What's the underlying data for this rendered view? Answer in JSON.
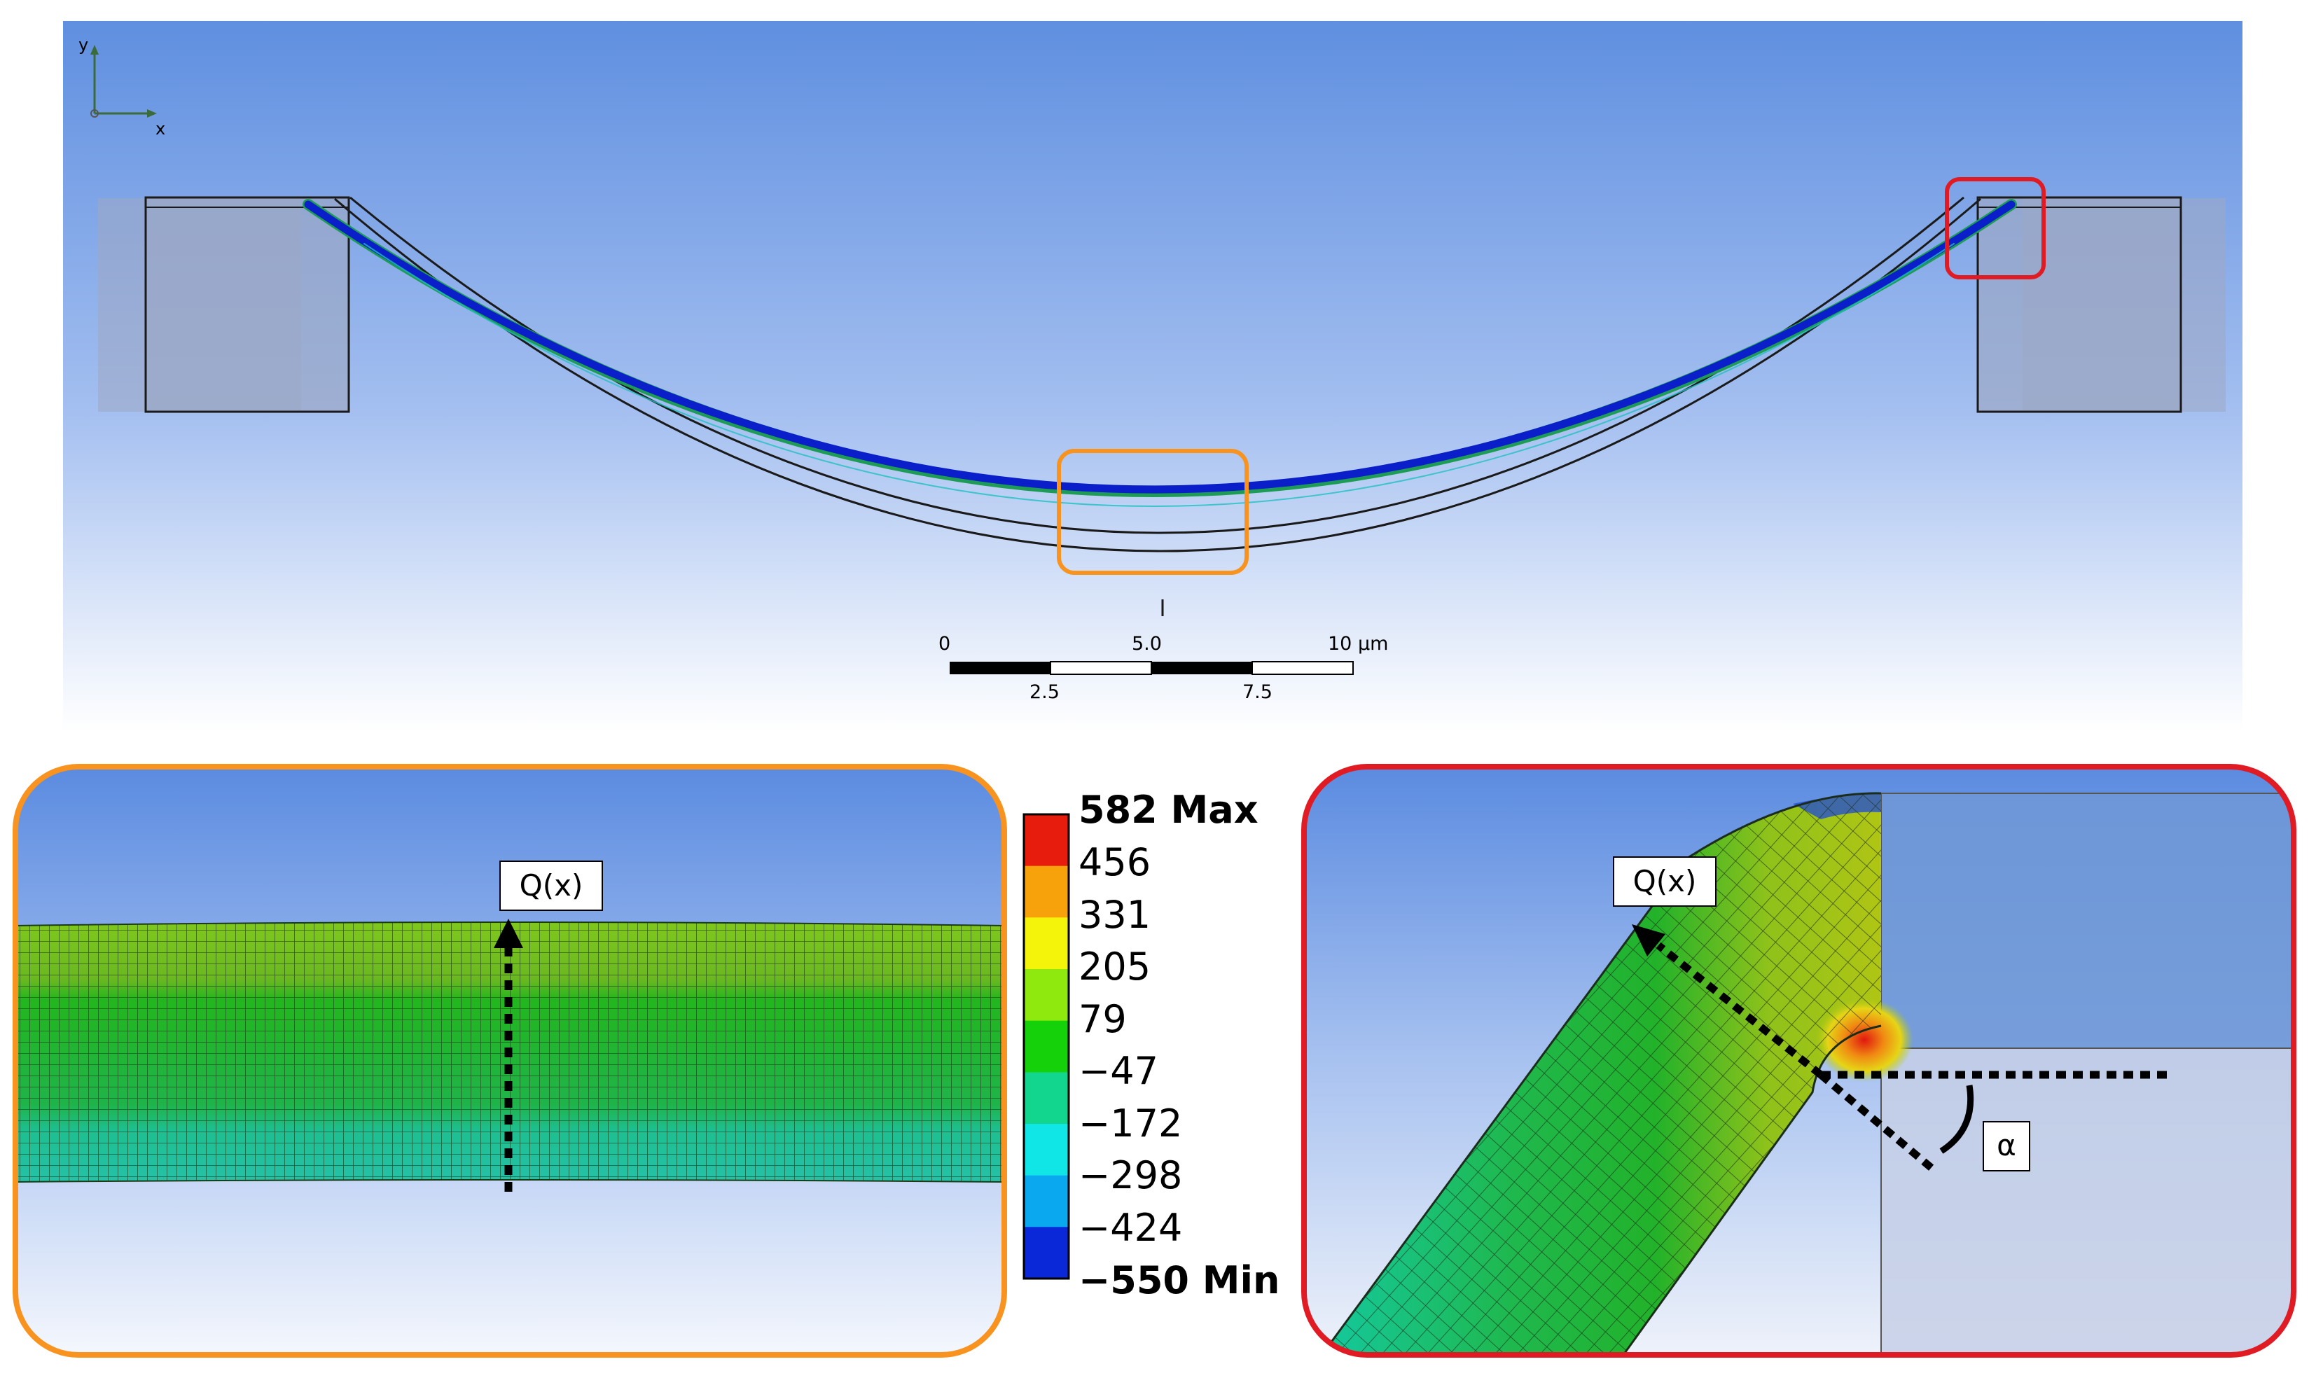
{
  "triad": {
    "x_axis": "x",
    "y_axis": "y"
  },
  "scale_bar": {
    "top_labels": [
      "0",
      "5.0",
      "10 µm"
    ],
    "bottom_labels": [
      "2.5",
      "7.5"
    ]
  },
  "legend": {
    "max_label": "582 Max",
    "min_label": "−550 Min",
    "levels": [
      "456",
      "331",
      "205",
      "79",
      "−47",
      "−172",
      "−298",
      "−424"
    ],
    "colors": [
      "#e81c0c",
      "#f7a20b",
      "#f4f40a",
      "#8fe80e",
      "#15d10a",
      "#12d68e",
      "#10e6e6",
      "#0aa8ee",
      "#0a28d8"
    ]
  },
  "annotations": {
    "left_label": "Q(x)",
    "right_label": "Q(x)",
    "angle_label": "α"
  },
  "highlight_colors": {
    "orange": "#f7931e",
    "red": "#e01b24"
  }
}
